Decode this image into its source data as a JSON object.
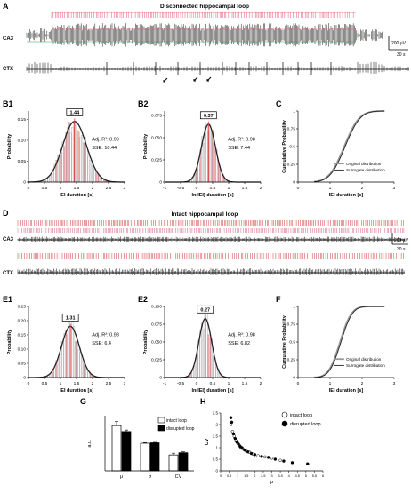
{
  "panel_letters": {
    "A": "A",
    "B1": "B1",
    "B2": "B2",
    "C": "C",
    "D": "D",
    "E1": "E1",
    "E2": "E2",
    "F": "F",
    "G": "G",
    "H": "H"
  },
  "trace_A": {
    "title": "Disconnected hippocampal loop",
    "ca3_label": "CA3",
    "ctx_label": "CTX",
    "scale_voltage": "200 µV",
    "scale_time": "30 s"
  },
  "trace_D": {
    "title": "Intact hippocampal loop",
    "ca3_label": "CA3",
    "ctx_label": "CTX",
    "scale_voltage": "200 µV",
    "scale_time": "30 s"
  },
  "colors": {
    "event_red": "#d43a3a",
    "event_pink": "#e05a7a",
    "trace_green": "#3c9c5c",
    "bar_gray": "#a0a0a0",
    "fit_line": "#222222"
  },
  "hist_B1": {
    "type": "bar",
    "ylabel": "Probability",
    "xlabel": "IEI duration [s]",
    "yticks": [
      "0",
      "0.05",
      "0.10",
      "0.15"
    ],
    "ylim": [
      0,
      0.17
    ],
    "xticks": [
      "0",
      "0.5",
      "1",
      "1.5",
      "2",
      "2.5",
      "3"
    ],
    "xlim": [
      0,
      3
    ],
    "peak_label": "1.44",
    "peak": 1.44,
    "fit_text_1": "Adj. R²: 0.99",
    "fit_text_2": "SSE: 10.44",
    "mu": 1.44,
    "sigma": 0.37,
    "amp": 0.145
  },
  "hist_B2": {
    "type": "bar",
    "ylabel": "Probability",
    "xlabel": "ln(IEI) duration [s]",
    "yticks": [
      "0",
      "0.025",
      "0.050",
      "0.075"
    ],
    "ylim": [
      0,
      0.08
    ],
    "xticks": [
      "-1",
      "-0.5",
      "0",
      "0.5",
      "1",
      "1.5",
      "2"
    ],
    "xlim": [
      -1,
      2
    ],
    "peak_label": "0.37",
    "peak": 0.37,
    "fit_text_1": "Adj. R²: 0.98",
    "fit_text_2": "SSE: 7.44",
    "mu": 0.37,
    "sigma": 0.22,
    "amp": 0.065
  },
  "cdf_C": {
    "type": "line",
    "ylabel": "Cumulative Probability",
    "xlabel": "IEI duration [s]",
    "yticks": [
      "0",
      "0.25",
      "0.5",
      "0.75",
      "1"
    ],
    "ylim": [
      0,
      1
    ],
    "xticks": [
      "0",
      "1",
      "2",
      "3"
    ],
    "xlim": [
      0,
      3
    ],
    "legend": [
      "Original distribution",
      "Surrogate distribution"
    ],
    "mu": 1.44,
    "sigma": 0.37
  },
  "hist_E1": {
    "type": "bar",
    "ylabel": "Probability",
    "xlabel": "IEI duration [s]",
    "yticks": [
      "0",
      "0.05",
      "0.10",
      "0.15",
      "0.20",
      "0.25"
    ],
    "ylim": [
      0,
      0.25
    ],
    "xticks": [
      "0",
      "0.5",
      "1",
      "1.5",
      "2",
      "2.5",
      "3"
    ],
    "xlim": [
      0,
      3
    ],
    "peak_label": "1.31",
    "peak": 1.31,
    "fit_text_1": "Adj. R²: 0.98",
    "fit_text_2": "SSE: 6.4",
    "mu": 1.31,
    "sigma": 0.28,
    "amp": 0.18
  },
  "hist_E2": {
    "type": "bar",
    "ylabel": "Probability",
    "xlabel": "ln(IEI) duration [s]",
    "yticks": [
      "0",
      "0.025",
      "0.050",
      "0.075",
      "0.100"
    ],
    "ylim": [
      0,
      0.1
    ],
    "xticks": [
      "-1",
      "-0.5",
      "0",
      "0.5",
      "1",
      "1.5",
      "2"
    ],
    "xlim": [
      -1,
      2
    ],
    "peak_label": "0.27",
    "peak": 0.27,
    "fit_text_1": "Adj. R²: 0.98",
    "fit_text_2": "SSE: 6.82",
    "mu": 0.27,
    "sigma": 0.2,
    "amp": 0.083
  },
  "cdf_F": {
    "type": "line",
    "ylabel": "Cumulative Probability",
    "xlabel": "IEI duration [s]",
    "yticks": [
      "0",
      "0.25",
      "0.5",
      "0.75",
      "1"
    ],
    "ylim": [
      0,
      1
    ],
    "xticks": [
      "0",
      "1",
      "2",
      "3"
    ],
    "xlim": [
      0,
      3
    ],
    "legend": [
      "Original distribution",
      "Surrogate distribution"
    ],
    "mu": 1.31,
    "sigma": 0.28
  },
  "chart_data": [
    {
      "type": "bar",
      "panel": "G",
      "ylabel": "a.u.",
      "categories": [
        "μ",
        "σ",
        "CV"
      ],
      "ylim": [
        0,
        2.5
      ],
      "yticks": [
        "0",
        "0.5",
        "1.0",
        "1.5",
        "2.0",
        "2.5"
      ],
      "series": [
        {
          "name": "intact loop",
          "values": [
            2.05,
            1.25,
            0.72
          ],
          "errors": [
            0.18,
            0.03,
            0.08
          ]
        },
        {
          "name": "disrupted loop",
          "values": [
            1.78,
            1.27,
            0.82
          ],
          "errors": [
            0.07,
            0.02,
            0.04
          ]
        }
      ]
    },
    {
      "type": "scatter",
      "panel": "H",
      "ylabel": "CV",
      "xlabel": "μ",
      "xlim": [
        0,
        6
      ],
      "ylim": [
        0,
        2.5
      ],
      "xticks": [
        "0",
        "0.5",
        "1",
        "1.5",
        "2",
        "2.5",
        "3",
        "3.5",
        "4",
        "4.5",
        "5",
        "5.5",
        "6"
      ],
      "yticks": [
        "0",
        "0.5",
        "1",
        "1.5",
        "2",
        "2.5"
      ],
      "series": [
        {
          "name": "intact loop",
          "points": [
            [
              0.6,
              2.0
            ],
            [
              0.7,
              1.7
            ],
            [
              0.8,
              1.5
            ],
            [
              0.9,
              1.3
            ],
            [
              1.0,
              1.2
            ],
            [
              1.1,
              1.1
            ],
            [
              1.2,
              1.0
            ],
            [
              1.3,
              0.95
            ],
            [
              1.5,
              0.85
            ],
            [
              1.7,
              0.8
            ],
            [
              1.9,
              0.72
            ],
            [
              2.2,
              0.65
            ],
            [
              2.6,
              0.6
            ],
            [
              3.0,
              0.55
            ],
            [
              3.5,
              0.45
            ]
          ]
        },
        {
          "name": "disrupted loop",
          "points": [
            [
              0.6,
              2.3
            ],
            [
              0.65,
              2.1
            ],
            [
              0.75,
              1.6
            ],
            [
              0.85,
              1.4
            ],
            [
              0.95,
              1.25
            ],
            [
              1.05,
              1.15
            ],
            [
              1.15,
              1.05
            ],
            [
              1.25,
              1.0
            ],
            [
              1.4,
              0.9
            ],
            [
              1.6,
              0.82
            ],
            [
              1.8,
              0.75
            ],
            [
              2.0,
              0.7
            ],
            [
              2.4,
              0.62
            ],
            [
              2.8,
              0.58
            ],
            [
              3.2,
              0.5
            ],
            [
              3.7,
              0.42
            ],
            [
              4.2,
              0.35
            ],
            [
              5.1,
              0.3
            ]
          ]
        }
      ]
    }
  ]
}
